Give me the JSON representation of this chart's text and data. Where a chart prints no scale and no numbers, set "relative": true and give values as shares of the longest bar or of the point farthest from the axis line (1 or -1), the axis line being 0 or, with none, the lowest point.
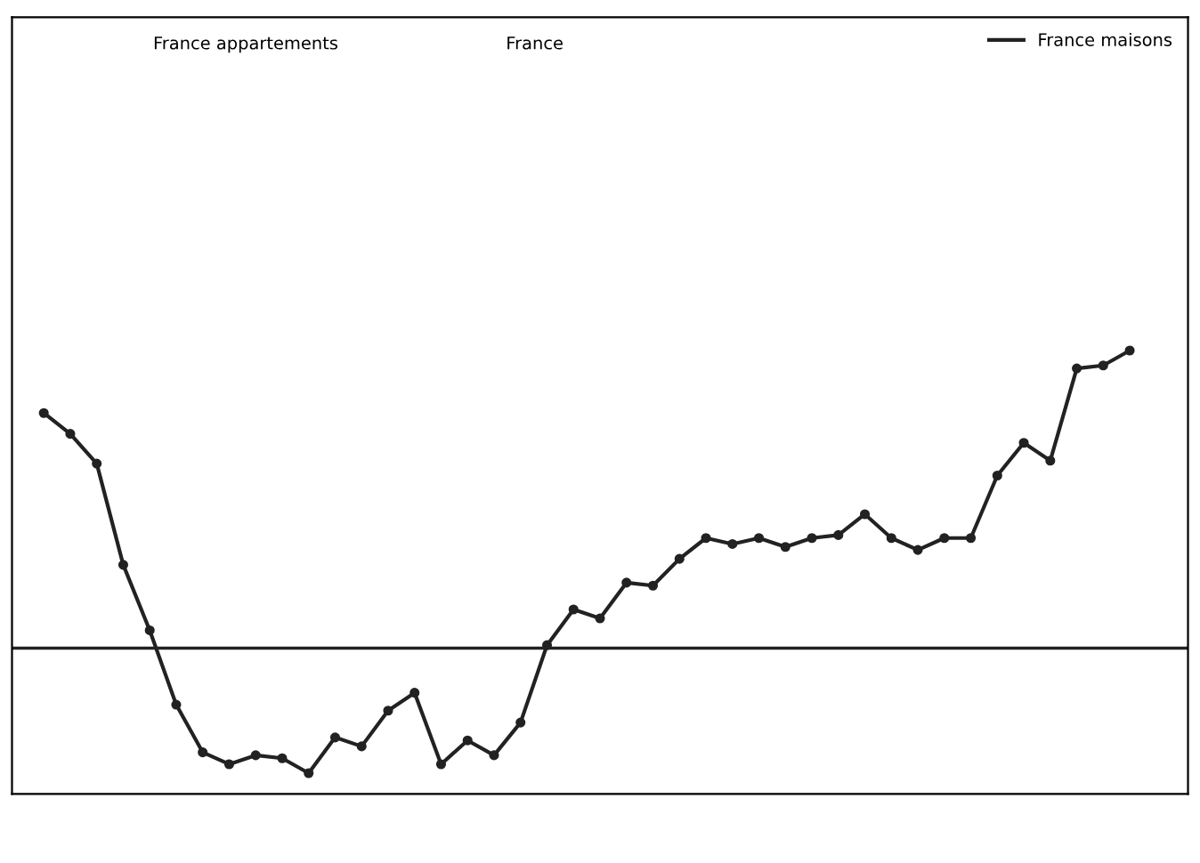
{
  "chart_data": {
    "type": "line",
    "relative": true,
    "categories": [
      null,
      null,
      null,
      null,
      null,
      null,
      null,
      null,
      null,
      null,
      null,
      null,
      null,
      null,
      null,
      null,
      null,
      null,
      null,
      null,
      null,
      null,
      null,
      null,
      null,
      null,
      null,
      null,
      null,
      null,
      null,
      null,
      null,
      null,
      null,
      null,
      null,
      null,
      null,
      null,
      null,
      null
    ],
    "series": [
      {
        "name": "France maisons",
        "color": "#222222",
        "values": [
          0.79,
          0.72,
          0.62,
          0.28,
          0.06,
          -0.19,
          -0.35,
          -0.39,
          -0.36,
          -0.37,
          -0.42,
          -0.3,
          -0.33,
          -0.21,
          -0.15,
          -0.39,
          -0.31,
          -0.36,
          -0.25,
          0.01,
          0.13,
          0.1,
          0.22,
          0.21,
          0.3,
          0.37,
          0.35,
          0.37,
          0.34,
          0.37,
          0.38,
          0.45,
          0.37,
          0.33,
          0.37,
          0.37,
          0.58,
          0.69,
          0.63,
          0.94,
          0.95,
          1.0
        ]
      }
    ],
    "annotations": [
      "France appartements",
      "France"
    ],
    "ref_lines": [
      {
        "axis": "y",
        "value": 0,
        "color": "#222222"
      }
    ],
    "legend": "top right",
    "marker": "circle",
    "line_style": "solid",
    "grid": false
  }
}
